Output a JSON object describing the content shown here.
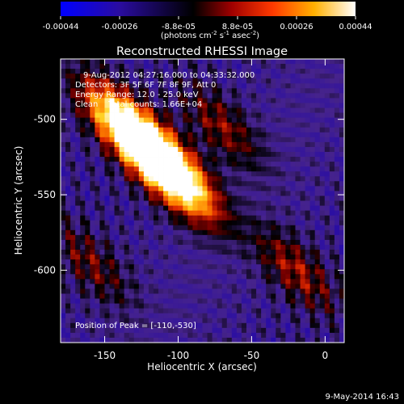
{
  "colorbar": {
    "tick_labels": [
      "-0.00044",
      "-0.00026",
      "-8.8e-05",
      "8.8e-05",
      "0.00026",
      "0.00044"
    ],
    "unit_label": "(photons cm",
    "unit_exp1": "-2",
    "unit_mid": " s",
    "unit_exp2": "-1",
    "unit_end": " asec",
    "unit_exp3": "-2",
    "unit_close": ")",
    "range": [
      -0.00044,
      0.00044
    ],
    "colors": [
      "#0000ff",
      "#1a0a8a",
      "#000000",
      "#c01a00",
      "#ff8a00",
      "#ffffff"
    ]
  },
  "chart_data": {
    "type": "heatmap",
    "title": "Reconstructed RHESSI Image",
    "xlabel": "Heliocentric X (arcsec)",
    "ylabel": "Heliocentric Y (arcsec)",
    "xlim": [
      -180,
      13
    ],
    "ylim": [
      -648,
      -460
    ],
    "x_ticks": [
      -150,
      -100,
      -50,
      0
    ],
    "y_ticks": [
      -500,
      -550,
      -600
    ],
    "annotations": {
      "time_range": "9-Aug-2012 04:27:16.000 to 04:33:32.000",
      "detectors": "Detectors: 3F 5F 6F 7F 8F 9F, Att 0",
      "energy": "Energy Range: 12.0 - 25.0 keV",
      "clean": "Clean    Total counts: 1.66E+04",
      "peak": "Position of Peak = [-110,-530]"
    },
    "peak_position": [
      -110,
      -530
    ],
    "bright_sources": [
      {
        "x": -110,
        "y": -530,
        "intensity": 1.0
      },
      {
        "x": -140,
        "y": -500,
        "intensity": 0.75
      },
      {
        "x": -125,
        "y": -515,
        "intensity": 0.65
      },
      {
        "x": -95,
        "y": -545,
        "intensity": 0.55
      },
      {
        "x": -70,
        "y": -505,
        "intensity": 0.4
      },
      {
        "x": -20,
        "y": -600,
        "intensity": 0.45
      },
      {
        "x": -160,
        "y": -595,
        "intensity": 0.35
      }
    ]
  },
  "footer": {
    "date": "9-May-2014 16:43"
  }
}
